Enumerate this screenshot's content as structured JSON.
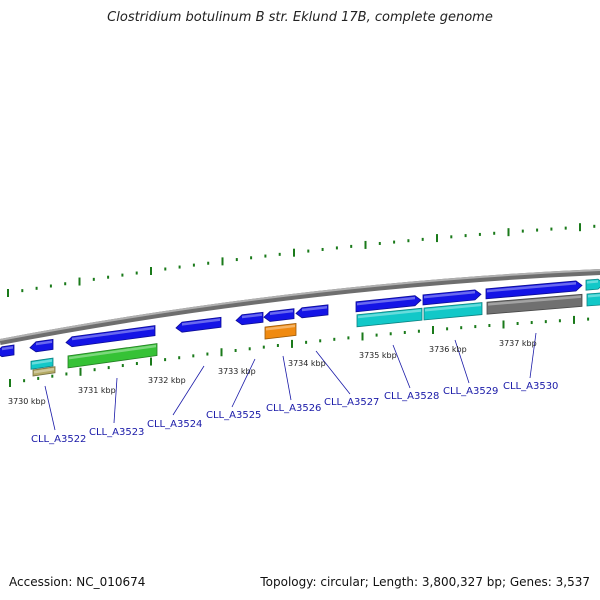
{
  "title": "Clostridium botulinum B str. Eklund 17B, complete genome",
  "footer": {
    "accession": "Accession: NC_010674",
    "summary": "Topology: circular; Length: 3,800,327 bp; Genes: 3,537"
  },
  "colors": {
    "blue_gene": "#1414e6",
    "cyan_gene": "#12c8c8",
    "green_gene": "#36c236",
    "orange_gene": "#f08a10",
    "gray_gene": "#707070",
    "tan_gene": "#b4aa64",
    "backbone": "#8a8a8a",
    "tick": "#1a7a1a",
    "gene_label": "#1a1aa8"
  },
  "scale_labels": [
    "3730 kbp",
    "3731 kbp",
    "3732 kbp",
    "3733 kbp",
    "3734 kbp",
    "3735 kbp",
    "3736 kbp",
    "3737 kbp"
  ],
  "gene_labels": [
    "CLL_A3522",
    "CLL_A3523",
    "CLL_A3524",
    "CLL_A3525",
    "CLL_A3526",
    "CLL_A3527",
    "CLL_A3528",
    "CLL_A3529",
    "CLL_A3530"
  ]
}
